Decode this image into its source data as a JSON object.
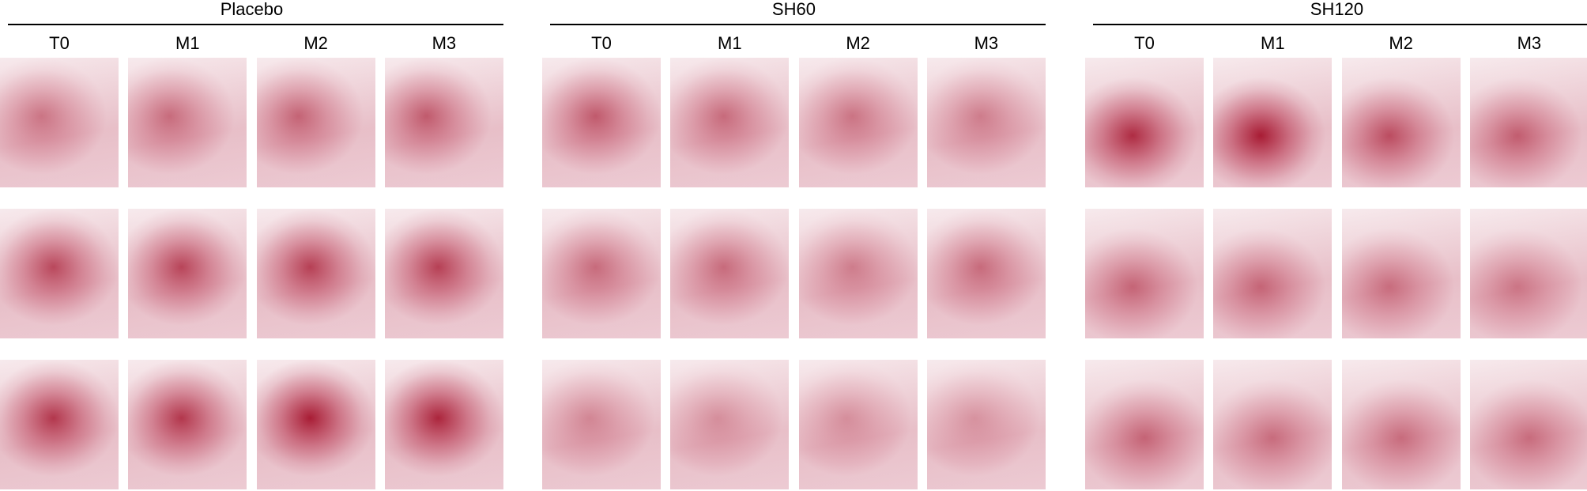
{
  "groups": [
    {
      "title": "Placebo",
      "columns": [
        "T0",
        "M1",
        "M2",
        "M3"
      ]
    },
    {
      "title": "SH60",
      "columns": [
        "T0",
        "M1",
        "M2",
        "M3"
      ]
    },
    {
      "title": "SH120",
      "columns": [
        "T0",
        "M1",
        "M2",
        "M3"
      ]
    }
  ]
}
